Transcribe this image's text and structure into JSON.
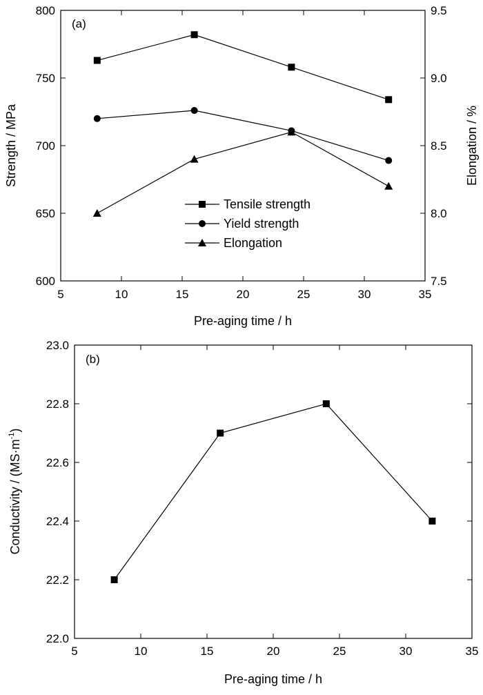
{
  "chart_data": [
    {
      "panel": "(a)",
      "type": "line",
      "title": "",
      "xlabel": "Pre-aging time / h",
      "ylabel": "Strength / MPa",
      "y2label": "Elongation / %",
      "xlim": [
        5,
        35
      ],
      "ylim": [
        600,
        800
      ],
      "y2lim": [
        7.5,
        9.5
      ],
      "xticks": [
        "5",
        "10",
        "15",
        "20",
        "25",
        "30",
        "35"
      ],
      "yticks": [
        "600",
        "650",
        "700",
        "750",
        "800"
      ],
      "y2ticks": [
        "7.5",
        "8.0",
        "8.5",
        "9.0",
        "9.5"
      ],
      "grid": false,
      "legend_position": "center-bottom",
      "series": [
        {
          "name": "Tensile strength",
          "axis": "left",
          "marker": "square",
          "x": [
            8,
            16,
            24,
            32
          ],
          "values": [
            763,
            782,
            758,
            734
          ]
        },
        {
          "name": "Yield strength",
          "axis": "left",
          "marker": "circle",
          "x": [
            8,
            16,
            24,
            32
          ],
          "values": [
            720,
            726,
            711,
            689
          ]
        },
        {
          "name": "Elongation",
          "axis": "right",
          "marker": "triangle",
          "x": [
            8,
            16,
            24,
            32
          ],
          "values": [
            8.0,
            8.4,
            8.6,
            8.2
          ]
        }
      ]
    },
    {
      "panel": "(b)",
      "type": "line",
      "title": "",
      "xlabel": "Pre-aging time / h",
      "ylabel": "Conductivity / (MS·m",
      "ylabel_sup": "-1",
      "ylabel_end": ")",
      "xlim": [
        5,
        35
      ],
      "ylim": [
        22.0,
        23.0
      ],
      "xticks": [
        "5",
        "10",
        "15",
        "20",
        "25",
        "30",
        "35"
      ],
      "yticks": [
        "22.0",
        "22.2",
        "22.4",
        "22.6",
        "22.8",
        "23.0"
      ],
      "grid": false,
      "series": [
        {
          "marker": "square",
          "x": [
            8,
            16,
            24,
            32
          ],
          "values": [
            22.2,
            22.7,
            22.8,
            22.4
          ]
        }
      ]
    }
  ]
}
